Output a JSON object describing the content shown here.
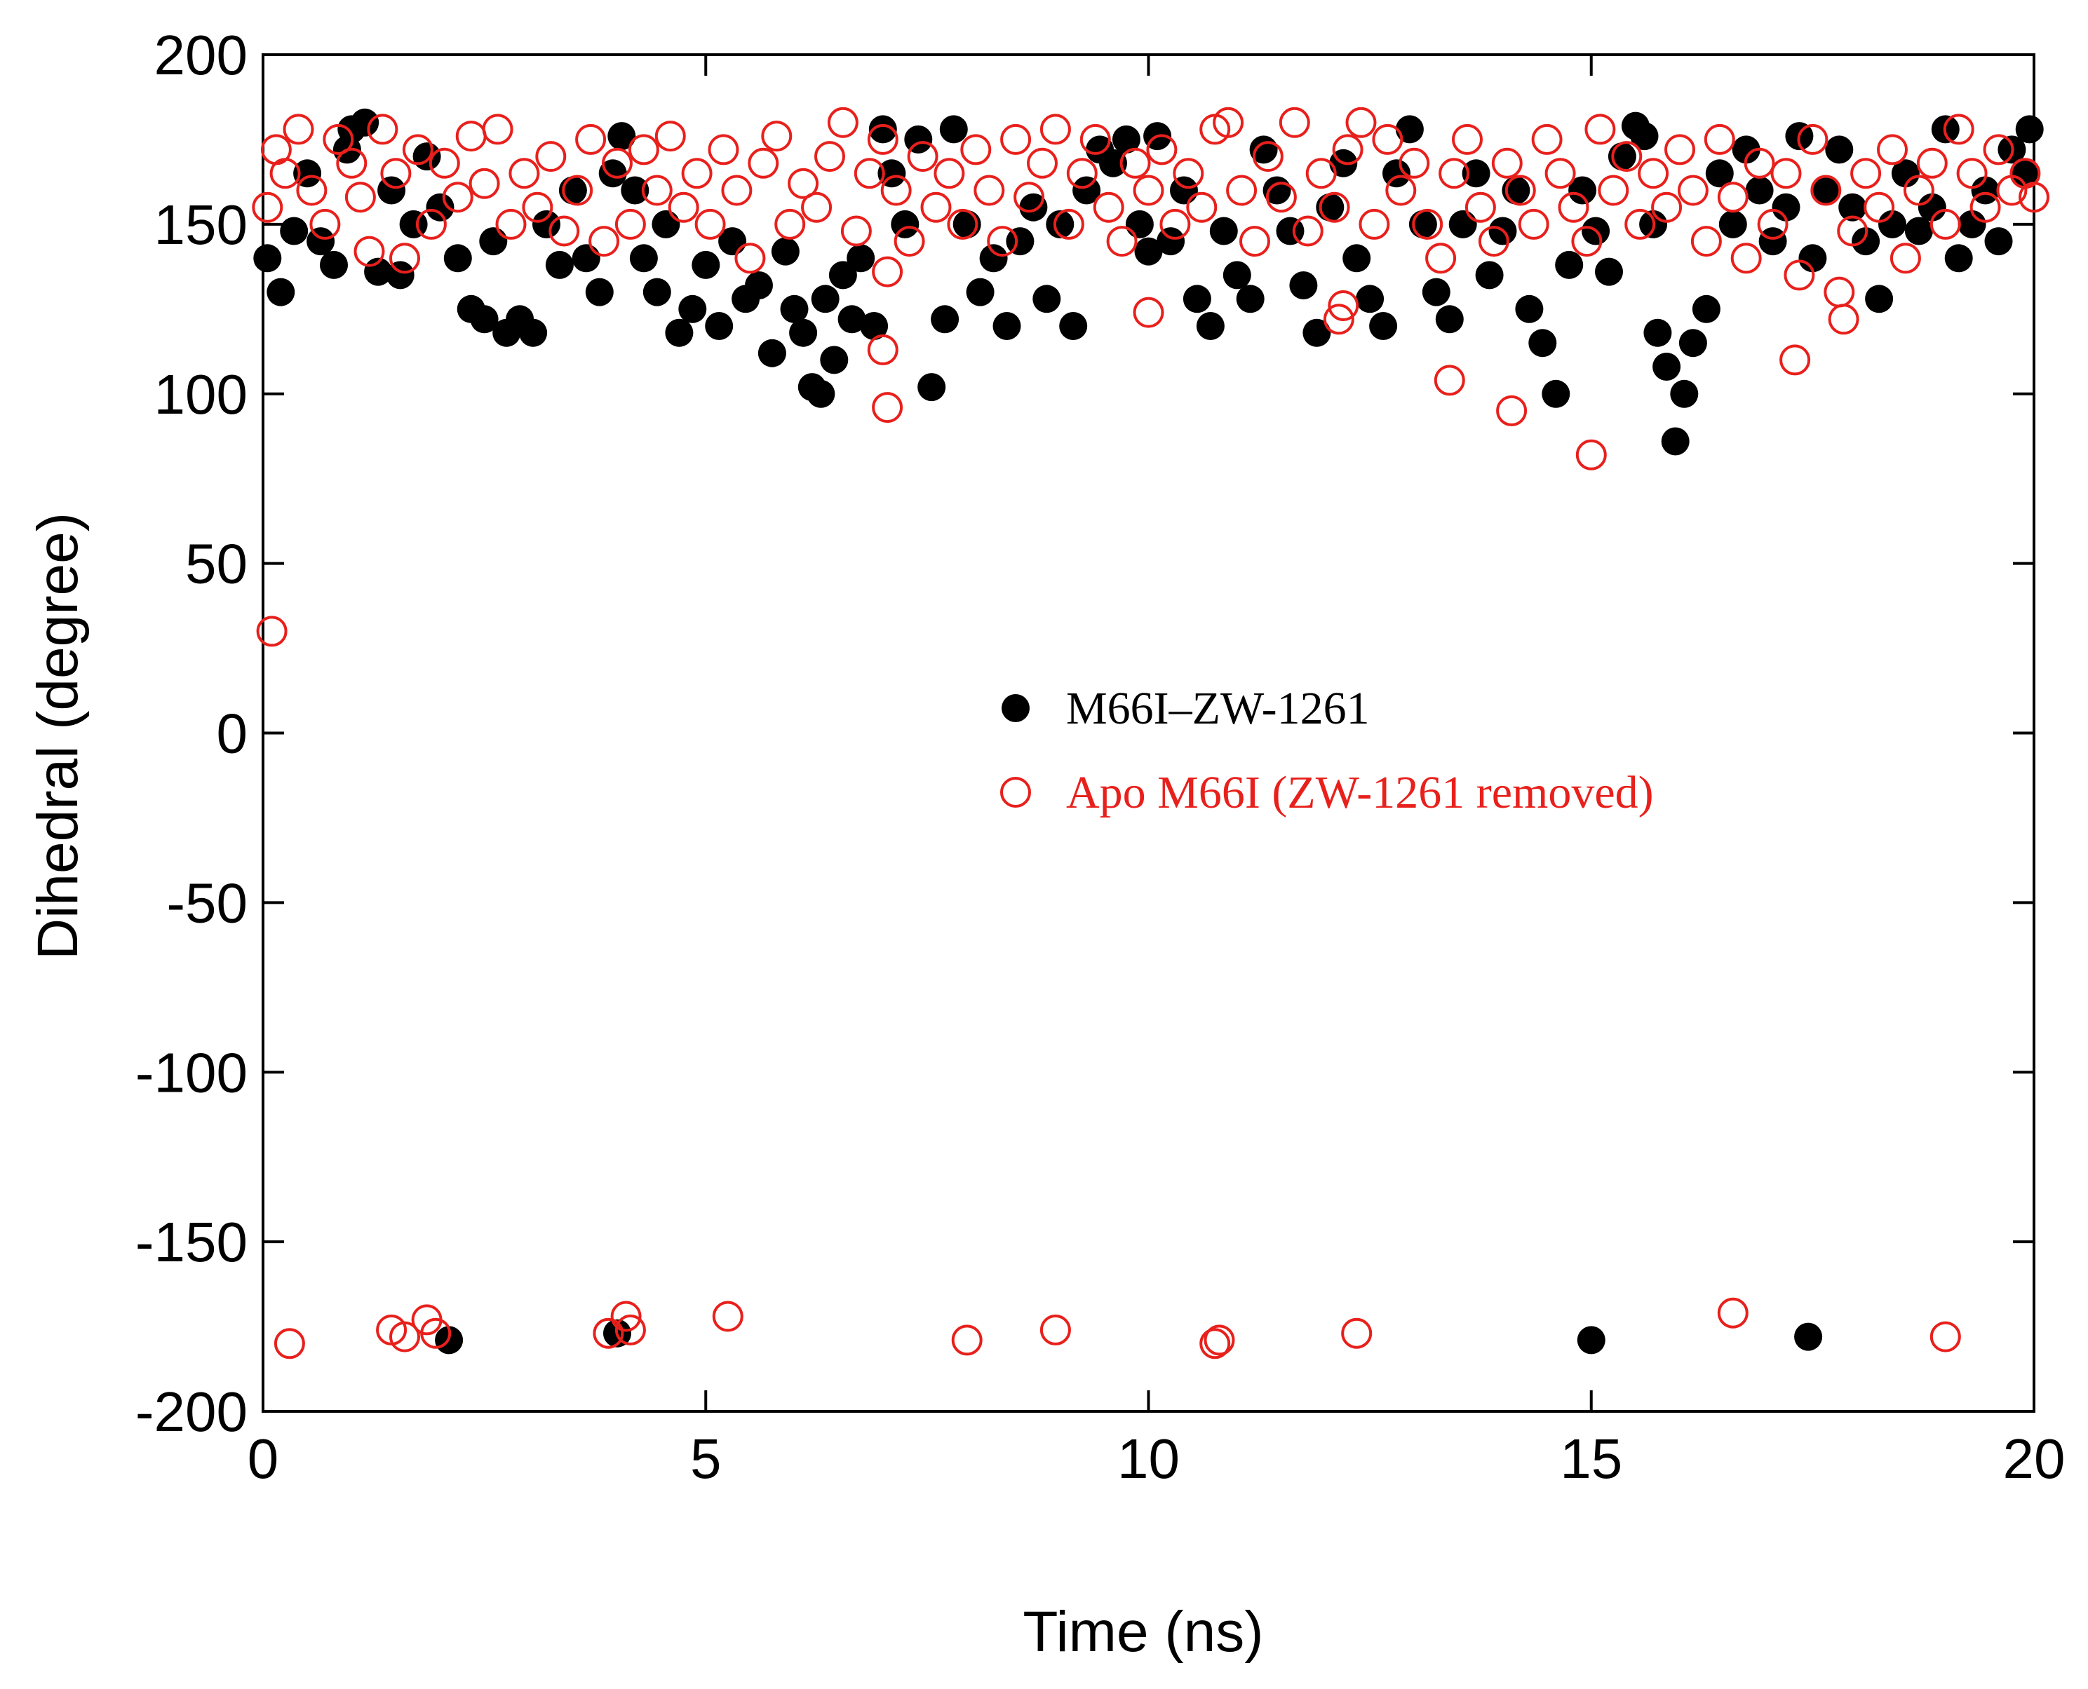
{
  "chart_data": {
    "type": "scatter",
    "title": "",
    "xlabel": "Time (ns)",
    "ylabel": "Dihedral (degree)",
    "xlim": [
      0,
      20
    ],
    "ylim": [
      -200,
      200
    ],
    "xticks": [
      0,
      5,
      10,
      15,
      20
    ],
    "yticks": [
      -200,
      -150,
      -100,
      -50,
      0,
      50,
      100,
      150,
      200
    ],
    "legend_position": "center-right",
    "series": [
      {
        "name": "M66I–ZW-1261",
        "marker": "filled-circle",
        "color": "#000000",
        "description": "Dense band between about 150 and 180 degrees over 0-20 ns with dips toward 100-140; isolated points near -180.",
        "points": [
          [
            0.05,
            140
          ],
          [
            0.2,
            130
          ],
          [
            0.35,
            148
          ],
          [
            0.5,
            165
          ],
          [
            0.65,
            145
          ],
          [
            0.8,
            138
          ],
          [
            0.95,
            172
          ],
          [
            1.0,
            178
          ],
          [
            1.15,
            180
          ],
          [
            1.3,
            136
          ],
          [
            1.45,
            160
          ],
          [
            1.55,
            135
          ],
          [
            1.7,
            150
          ],
          [
            1.85,
            170
          ],
          [
            2.0,
            155
          ],
          [
            2.2,
            140
          ],
          [
            2.35,
            125
          ],
          [
            2.5,
            122
          ],
          [
            2.6,
            145
          ],
          [
            2.75,
            118
          ],
          [
            2.9,
            122
          ],
          [
            3.05,
            118
          ],
          [
            3.2,
            150
          ],
          [
            3.35,
            138
          ],
          [
            3.5,
            160
          ],
          [
            3.65,
            140
          ],
          [
            3.8,
            130
          ],
          [
            3.95,
            165
          ],
          [
            4.05,
            176
          ],
          [
            4.2,
            160
          ],
          [
            4.3,
            140
          ],
          [
            4.45,
            130
          ],
          [
            4.55,
            150
          ],
          [
            4.7,
            118
          ],
          [
            4.85,
            125
          ],
          [
            5.0,
            138
          ],
          [
            5.15,
            120
          ],
          [
            5.3,
            145
          ],
          [
            5.45,
            128
          ],
          [
            5.6,
            132
          ],
          [
            5.75,
            112
          ],
          [
            5.9,
            142
          ],
          [
            6.0,
            125
          ],
          [
            6.1,
            118
          ],
          [
            6.2,
            102
          ],
          [
            6.3,
            100
          ],
          [
            6.35,
            128
          ],
          [
            6.45,
            110
          ],
          [
            6.55,
            135
          ],
          [
            6.65,
            122
          ],
          [
            6.75,
            140
          ],
          [
            6.9,
            120
          ],
          [
            7.0,
            178
          ],
          [
            7.1,
            165
          ],
          [
            7.25,
            150
          ],
          [
            7.4,
            175
          ],
          [
            7.55,
            102
          ],
          [
            7.7,
            122
          ],
          [
            7.8,
            178
          ],
          [
            7.95,
            150
          ],
          [
            8.1,
            130
          ],
          [
            8.25,
            140
          ],
          [
            8.4,
            120
          ],
          [
            8.55,
            145
          ],
          [
            8.7,
            155
          ],
          [
            8.85,
            128
          ],
          [
            9.0,
            150
          ],
          [
            9.15,
            120
          ],
          [
            9.3,
            160
          ],
          [
            9.45,
            172
          ],
          [
            9.6,
            168
          ],
          [
            9.75,
            175
          ],
          [
            9.9,
            150
          ],
          [
            10.0,
            142
          ],
          [
            10.1,
            176
          ],
          [
            10.25,
            145
          ],
          [
            10.4,
            160
          ],
          [
            10.55,
            128
          ],
          [
            10.7,
            120
          ],
          [
            10.85,
            148
          ],
          [
            11.0,
            135
          ],
          [
            11.15,
            128
          ],
          [
            11.3,
            172
          ],
          [
            11.45,
            160
          ],
          [
            11.6,
            148
          ],
          [
            11.75,
            132
          ],
          [
            11.9,
            118
          ],
          [
            12.05,
            155
          ],
          [
            12.2,
            168
          ],
          [
            12.35,
            140
          ],
          [
            12.5,
            128
          ],
          [
            12.65,
            120
          ],
          [
            12.8,
            165
          ],
          [
            12.95,
            178
          ],
          [
            13.1,
            150
          ],
          [
            13.25,
            130
          ],
          [
            13.4,
            122
          ],
          [
            13.55,
            150
          ],
          [
            13.7,
            165
          ],
          [
            13.85,
            135
          ],
          [
            14.0,
            148
          ],
          [
            14.15,
            160
          ],
          [
            14.3,
            125
          ],
          [
            14.45,
            115
          ],
          [
            14.6,
            100
          ],
          [
            14.75,
            138
          ],
          [
            14.9,
            160
          ],
          [
            15.05,
            148
          ],
          [
            15.2,
            136
          ],
          [
            15.35,
            170
          ],
          [
            15.5,
            179
          ],
          [
            15.6,
            176
          ],
          [
            15.7,
            150
          ],
          [
            15.75,
            118
          ],
          [
            15.85,
            108
          ],
          [
            15.95,
            86
          ],
          [
            16.05,
            100
          ],
          [
            16.15,
            115
          ],
          [
            16.3,
            125
          ],
          [
            16.45,
            165
          ],
          [
            16.6,
            150
          ],
          [
            16.75,
            172
          ],
          [
            16.9,
            160
          ],
          [
            17.05,
            145
          ],
          [
            17.2,
            155
          ],
          [
            17.35,
            176
          ],
          [
            17.5,
            140
          ],
          [
            17.65,
            160
          ],
          [
            17.8,
            172
          ],
          [
            17.95,
            155
          ],
          [
            18.1,
            145
          ],
          [
            18.25,
            128
          ],
          [
            18.4,
            150
          ],
          [
            18.55,
            165
          ],
          [
            18.7,
            148
          ],
          [
            18.85,
            155
          ],
          [
            19.0,
            178
          ],
          [
            19.15,
            140
          ],
          [
            19.3,
            150
          ],
          [
            19.45,
            160
          ],
          [
            19.6,
            145
          ],
          [
            19.75,
            172
          ],
          [
            19.9,
            165
          ],
          [
            19.95,
            178
          ],
          [
            2.1,
            -179
          ],
          [
            4.0,
            -177
          ],
          [
            15.0,
            -179
          ],
          [
            17.45,
            -178
          ]
        ]
      },
      {
        "name": "Apo M66I (ZW-1261 removed)",
        "marker": "open-circle",
        "color": "#e8201c",
        "description": "Dense band between about 140 and 180 degrees with occasional dips to 80-125; one point near 30 at t=0; isolated points near -170 to -180.",
        "points": [
          [
            0.1,
            30
          ],
          [
            7.0,
            113
          ],
          [
            7.05,
            96
          ],
          [
            7.05,
            136
          ],
          [
            10.0,
            124
          ],
          [
            12.15,
            122
          ],
          [
            12.2,
            126
          ],
          [
            13.4,
            104
          ],
          [
            14.1,
            95
          ],
          [
            15.0,
            82
          ],
          [
            17.3,
            110
          ],
          [
            17.85,
            122
          ],
          [
            0.3,
            -180
          ],
          [
            1.45,
            -176
          ],
          [
            1.6,
            -178
          ],
          [
            1.85,
            -173
          ],
          [
            1.95,
            -177
          ],
          [
            3.9,
            -177
          ],
          [
            4.1,
            -172
          ],
          [
            4.15,
            -176
          ],
          [
            5.25,
            -172
          ],
          [
            7.95,
            -179
          ],
          [
            8.95,
            -176
          ],
          [
            10.75,
            -180
          ],
          [
            10.8,
            -179
          ],
          [
            12.35,
            -177
          ],
          [
            16.6,
            -171
          ],
          [
            19.0,
            -178
          ],
          [
            0.05,
            155
          ],
          [
            0.15,
            172
          ],
          [
            0.25,
            165
          ],
          [
            0.4,
            178
          ],
          [
            0.55,
            160
          ],
          [
            0.7,
            150
          ],
          [
            0.85,
            175
          ],
          [
            1.0,
            168
          ],
          [
            1.1,
            158
          ],
          [
            1.2,
            142
          ],
          [
            1.35,
            178
          ],
          [
            1.5,
            165
          ],
          [
            1.6,
            140
          ],
          [
            1.75,
            172
          ],
          [
            1.9,
            150
          ],
          [
            2.05,
            168
          ],
          [
            2.2,
            158
          ],
          [
            2.35,
            176
          ],
          [
            2.5,
            162
          ],
          [
            2.65,
            178
          ],
          [
            2.8,
            150
          ],
          [
            2.95,
            165
          ],
          [
            3.1,
            155
          ],
          [
            3.25,
            170
          ],
          [
            3.4,
            148
          ],
          [
            3.55,
            160
          ],
          [
            3.7,
            175
          ],
          [
            3.85,
            145
          ],
          [
            4.0,
            168
          ],
          [
            4.15,
            150
          ],
          [
            4.3,
            172
          ],
          [
            4.45,
            160
          ],
          [
            4.6,
            176
          ],
          [
            4.75,
            155
          ],
          [
            4.9,
            165
          ],
          [
            5.05,
            150
          ],
          [
            5.2,
            172
          ],
          [
            5.35,
            160
          ],
          [
            5.5,
            140
          ],
          [
            5.65,
            168
          ],
          [
            5.8,
            176
          ],
          [
            5.95,
            150
          ],
          [
            6.1,
            162
          ],
          [
            6.25,
            155
          ],
          [
            6.4,
            170
          ],
          [
            6.55,
            180
          ],
          [
            6.7,
            148
          ],
          [
            6.85,
            165
          ],
          [
            7.0,
            175
          ],
          [
            7.15,
            160
          ],
          [
            7.3,
            145
          ],
          [
            7.45,
            170
          ],
          [
            7.6,
            155
          ],
          [
            7.75,
            165
          ],
          [
            7.9,
            150
          ],
          [
            8.05,
            172
          ],
          [
            8.2,
            160
          ],
          [
            8.35,
            145
          ],
          [
            8.5,
            175
          ],
          [
            8.65,
            158
          ],
          [
            8.8,
            168
          ],
          [
            8.95,
            178
          ],
          [
            9.1,
            150
          ],
          [
            9.25,
            165
          ],
          [
            9.4,
            175
          ],
          [
            9.55,
            155
          ],
          [
            9.7,
            145
          ],
          [
            9.85,
            168
          ],
          [
            10.0,
            160
          ],
          [
            10.15,
            172
          ],
          [
            10.3,
            150
          ],
          [
            10.45,
            165
          ],
          [
            10.6,
            155
          ],
          [
            10.75,
            178
          ],
          [
            10.9,
            180
          ],
          [
            11.05,
            160
          ],
          [
            11.2,
            145
          ],
          [
            11.35,
            170
          ],
          [
            11.5,
            158
          ],
          [
            11.65,
            180
          ],
          [
            11.8,
            148
          ],
          [
            11.95,
            165
          ],
          [
            12.1,
            155
          ],
          [
            12.25,
            172
          ],
          [
            12.4,
            180
          ],
          [
            12.55,
            150
          ],
          [
            12.7,
            175
          ],
          [
            12.85,
            160
          ],
          [
            13.0,
            168
          ],
          [
            13.15,
            150
          ],
          [
            13.3,
            140
          ],
          [
            13.45,
            165
          ],
          [
            13.6,
            175
          ],
          [
            13.75,
            155
          ],
          [
            13.9,
            145
          ],
          [
            14.05,
            168
          ],
          [
            14.2,
            160
          ],
          [
            14.35,
            150
          ],
          [
            14.5,
            175
          ],
          [
            14.65,
            165
          ],
          [
            14.8,
            155
          ],
          [
            14.95,
            145
          ],
          [
            15.1,
            178
          ],
          [
            15.25,
            160
          ],
          [
            15.4,
            170
          ],
          [
            15.55,
            150
          ],
          [
            15.7,
            165
          ],
          [
            15.85,
            155
          ],
          [
            16.0,
            172
          ],
          [
            16.15,
            160
          ],
          [
            16.3,
            145
          ],
          [
            16.45,
            175
          ],
          [
            16.6,
            158
          ],
          [
            16.75,
            140
          ],
          [
            16.9,
            168
          ],
          [
            17.05,
            150
          ],
          [
            17.2,
            165
          ],
          [
            17.35,
            135
          ],
          [
            17.5,
            175
          ],
          [
            17.65,
            160
          ],
          [
            17.8,
            130
          ],
          [
            17.95,
            148
          ],
          [
            18.1,
            165
          ],
          [
            18.25,
            155
          ],
          [
            18.4,
            172
          ],
          [
            18.55,
            140
          ],
          [
            18.7,
            160
          ],
          [
            18.85,
            168
          ],
          [
            19.0,
            150
          ],
          [
            19.15,
            178
          ],
          [
            19.3,
            165
          ],
          [
            19.45,
            155
          ],
          [
            19.6,
            172
          ],
          [
            19.75,
            160
          ],
          [
            19.9,
            165
          ],
          [
            20.0,
            158
          ]
        ]
      }
    ]
  }
}
